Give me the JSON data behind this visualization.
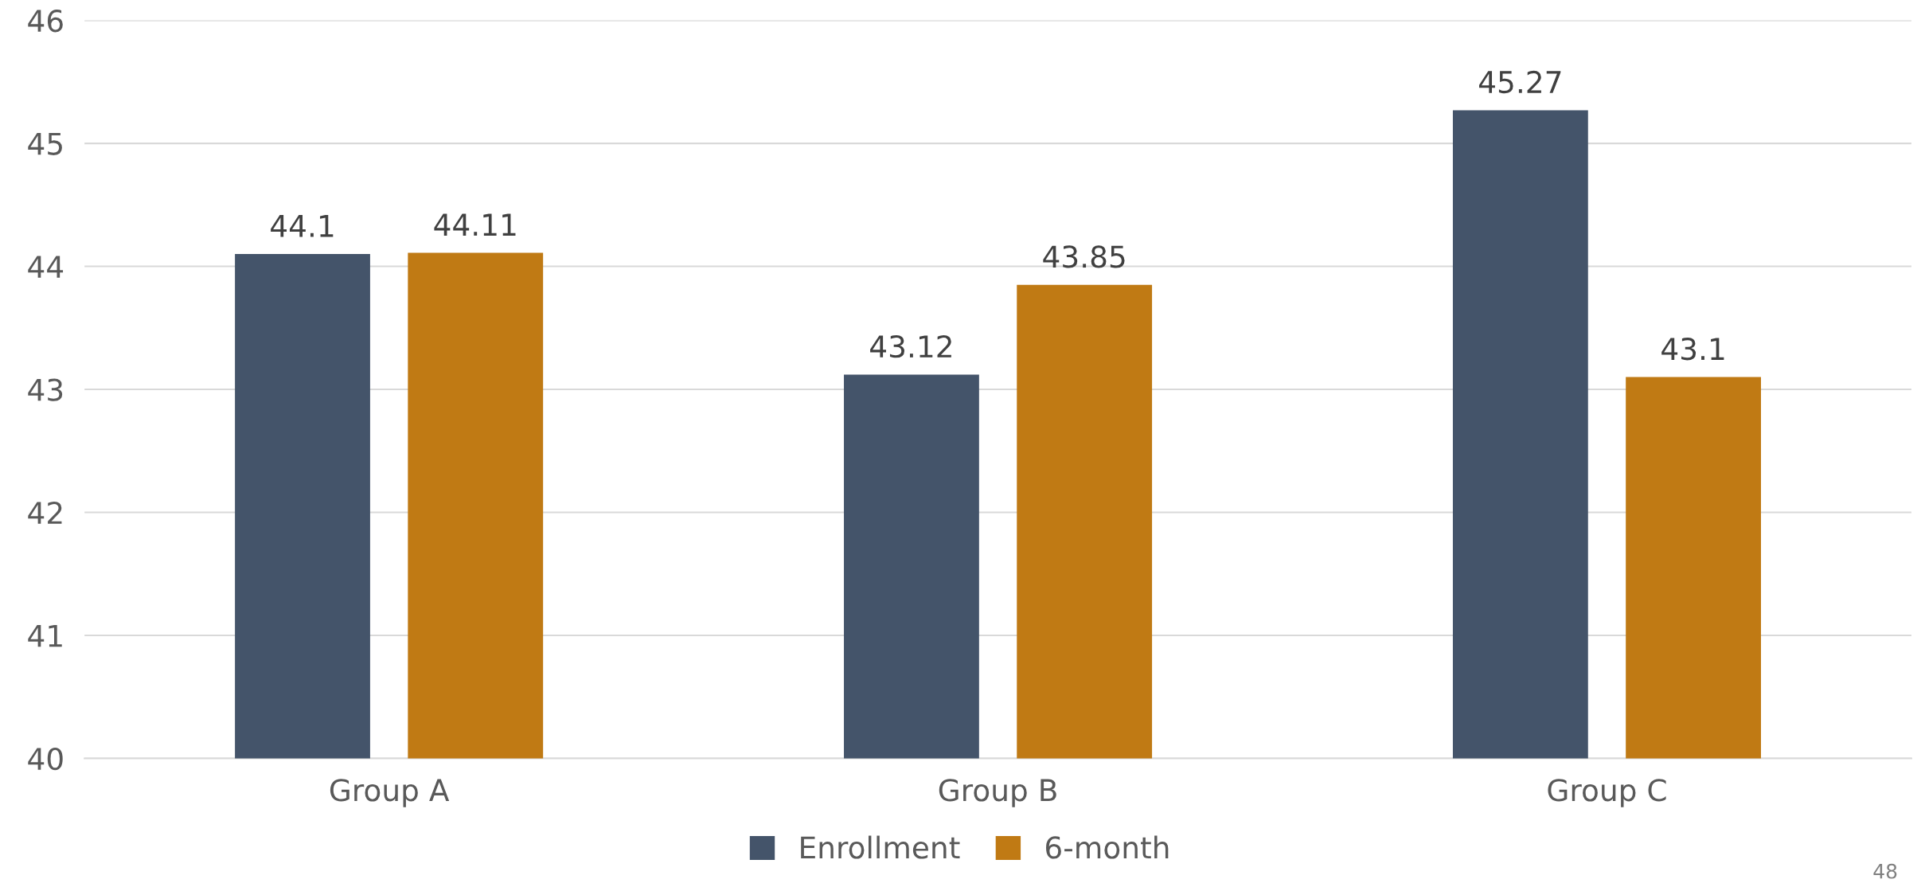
{
  "chart_data": {
    "type": "bar",
    "categories": [
      "Group A",
      "Group B",
      "Group C"
    ],
    "series": [
      {
        "name": "Enrollment",
        "color": "#44546a",
        "values": [
          44.1,
          43.12,
          45.27
        ]
      },
      {
        "name": "6-month",
        "color": "#c07a14",
        "values": [
          44.11,
          43.85,
          43.1
        ]
      }
    ],
    "ylim": [
      40,
      46
    ],
    "yticks": [
      40,
      41,
      42,
      43,
      44,
      45,
      46
    ],
    "grid": "y",
    "legend": "bottom",
    "data_labels": true,
    "annotations": [
      "48"
    ]
  }
}
